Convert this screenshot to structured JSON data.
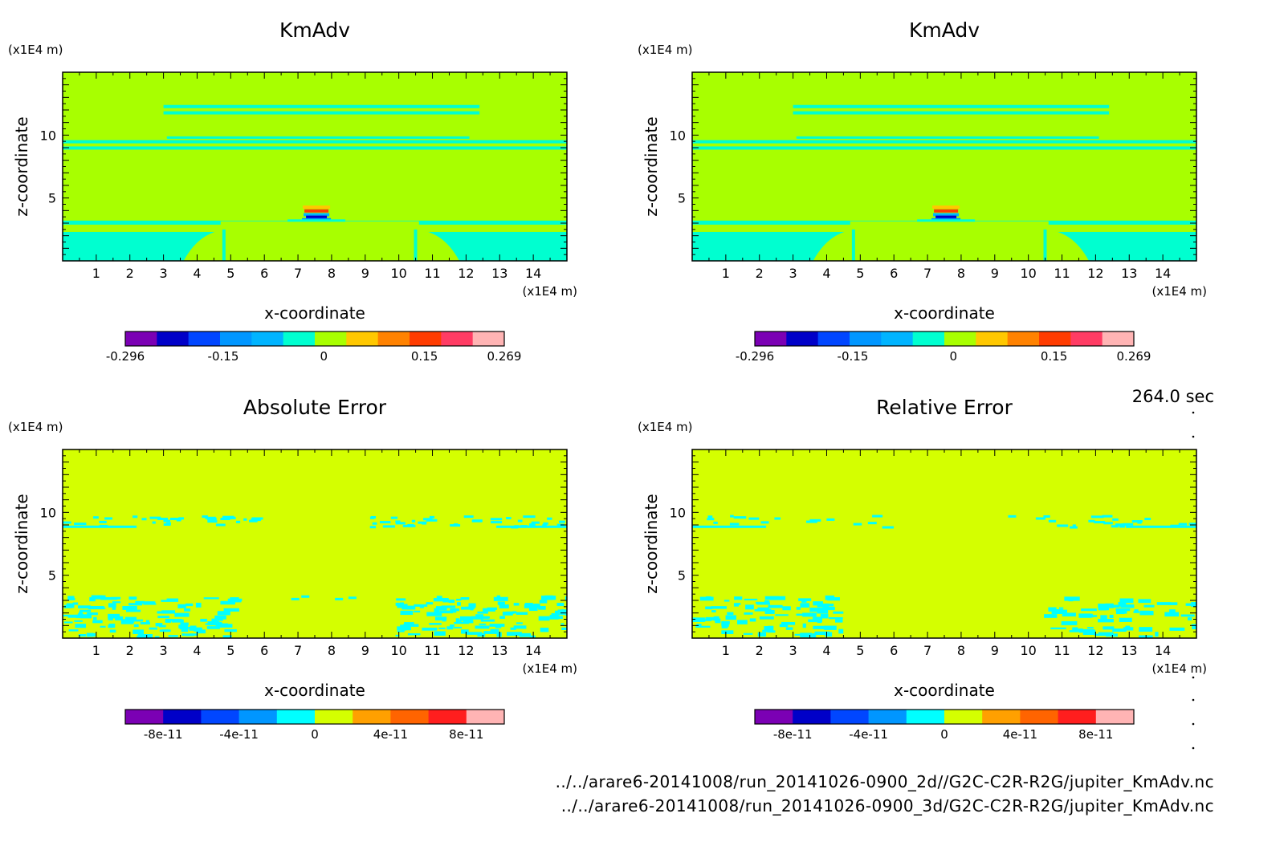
{
  "time_label": "264.0 sec",
  "files": [
    "../../arare6-20141008/run_20141026-0900_2d//G2C-C2R-R2G/jupiter_KmAdv.nc",
    "../../arare6-20141008/run_20141026-0900_3d/G2C-C2R-R2G/jupiter_KmAdv.nc"
  ],
  "colors": {
    "background_field_upper": "#a8ff00",
    "cyan_band_upper": "#00ffd0",
    "background_field_lower": "#d4ff00",
    "cyan_band_lower": "#00ffff"
  },
  "chart_data": [
    {
      "type": "heatmap",
      "title": "KmAdv",
      "xlabel": "x-coordinate",
      "ylabel": "z-coordinate",
      "x_unit": "(x1E4 m)",
      "y_unit": "(x1E4 m)",
      "xlim": [
        0,
        15
      ],
      "ylim": [
        0,
        15
      ],
      "xticks": [
        1,
        2,
        3,
        4,
        5,
        6,
        7,
        8,
        9,
        10,
        11,
        12,
        13,
        14
      ],
      "yticks": [
        5,
        10
      ],
      "colorbar": {
        "colors": [
          "#7b00b4",
          "#0000c8",
          "#0046ff",
          "#0096ff",
          "#00b4ff",
          "#00ffd0",
          "#a8ff00",
          "#ffc800",
          "#ff8200",
          "#ff3c00",
          "#ff3c64",
          "#ffb4b4"
        ],
        "ticks": [
          -0.296,
          -0.15,
          0,
          0.15,
          0.269
        ],
        "tick_labels": [
          "-0.296",
          "-0.15",
          "0",
          "0.15",
          "0.269"
        ],
        "range": [
          -0.296,
          0.269
        ]
      }
    },
    {
      "type": "heatmap",
      "title": "KmAdv",
      "xlabel": "x-coordinate",
      "ylabel": "z-coordinate",
      "x_unit": "(x1E4 m)",
      "y_unit": "(x1E4 m)",
      "xlim": [
        0,
        15
      ],
      "ylim": [
        0,
        15
      ],
      "xticks": [
        1,
        2,
        3,
        4,
        5,
        6,
        7,
        8,
        9,
        10,
        11,
        12,
        13,
        14
      ],
      "yticks": [
        5,
        10
      ],
      "colorbar": {
        "colors": [
          "#7b00b4",
          "#0000c8",
          "#0046ff",
          "#0096ff",
          "#00b4ff",
          "#00ffd0",
          "#a8ff00",
          "#ffc800",
          "#ff8200",
          "#ff3c00",
          "#ff3c64",
          "#ffb4b4"
        ],
        "ticks": [
          -0.296,
          -0.15,
          0,
          0.15,
          0.269
        ],
        "tick_labels": [
          "-0.296",
          "-0.15",
          "0",
          "0.15",
          "0.269"
        ],
        "range": [
          -0.296,
          0.269
        ]
      }
    },
    {
      "type": "heatmap",
      "title": "Absolute Error",
      "xlabel": "x-coordinate",
      "ylabel": "z-coordinate",
      "x_unit": "(x1E4 m)",
      "y_unit": "(x1E4 m)",
      "xlim": [
        0,
        15
      ],
      "ylim": [
        0,
        15
      ],
      "xticks": [
        1,
        2,
        3,
        4,
        5,
        6,
        7,
        8,
        9,
        10,
        11,
        12,
        13,
        14
      ],
      "yticks": [
        5,
        10
      ],
      "colorbar": {
        "colors": [
          "#7b00b4",
          "#0000c8",
          "#0046ff",
          "#0096ff",
          "#00ffff",
          "#d4ff00",
          "#ffa000",
          "#ff6400",
          "#ff1e1e",
          "#ffb4b4"
        ],
        "ticks": [
          -8e-11,
          -4e-11,
          0,
          4e-11,
          8e-11
        ],
        "tick_labels": [
          "-8e-11",
          "-4e-11",
          "0",
          "4e-11",
          "8e-11"
        ],
        "range": [
          -1e-10,
          1e-10
        ]
      }
    },
    {
      "type": "heatmap",
      "title": "Relative Error",
      "xlabel": "x-coordinate",
      "ylabel": "z-coordinate",
      "x_unit": "(x1E4 m)",
      "y_unit": "(x1E4 m)",
      "xlim": [
        0,
        15
      ],
      "ylim": [
        0,
        15
      ],
      "xticks": [
        1,
        2,
        3,
        4,
        5,
        6,
        7,
        8,
        9,
        10,
        11,
        12,
        13,
        14
      ],
      "yticks": [
        5,
        10
      ],
      "colorbar": {
        "colors": [
          "#7b00b4",
          "#0000c8",
          "#0046ff",
          "#0096ff",
          "#00ffff",
          "#d4ff00",
          "#ffa000",
          "#ff6400",
          "#ff1e1e",
          "#ffb4b4"
        ],
        "ticks": [
          -8e-11,
          -4e-11,
          0,
          4e-11,
          8e-11
        ],
        "tick_labels": [
          "-8e-11",
          "-4e-11",
          "0",
          "4e-11",
          "8e-11"
        ],
        "range": [
          -1e-10,
          1e-10
        ]
      }
    }
  ]
}
